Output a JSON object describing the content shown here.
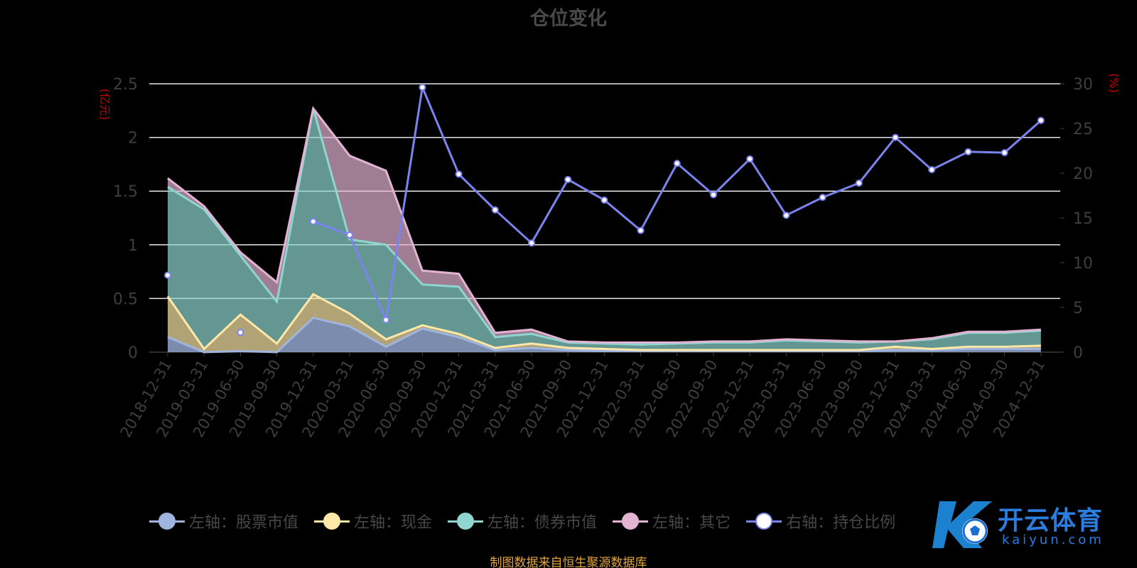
{
  "header": {
    "title": "仓位变化"
  },
  "footer": {
    "source": "制图数据来自恒生聚源数据库"
  },
  "watermark": {
    "brand": "开云体育",
    "domain": "kaiyun.com"
  },
  "legend": {
    "items": [
      {
        "label": "左轴：股票市值",
        "color": "#9fb4de"
      },
      {
        "label": "左轴：现金",
        "color": "#fde8a8"
      },
      {
        "label": "左轴：债券市值",
        "color": "#8fd5d0"
      },
      {
        "label": "左轴：其它",
        "color": "#e2b3d3"
      },
      {
        "label": "右轴：持仓比例",
        "color": "#7b84ee"
      }
    ]
  },
  "chart_data": {
    "type": "area",
    "title": "仓位变化",
    "y_left_label": "(亿元)",
    "y_right_label": "(%)",
    "y_left_range": [
      0,
      2.5
    ],
    "y_right_range": [
      0,
      30
    ],
    "y_left_ticks": [
      "0",
      "0.5",
      "1",
      "1.5",
      "2",
      "2.5"
    ],
    "y_right_ticks": [
      "0",
      "5",
      "10",
      "15",
      "20",
      "25",
      "30"
    ],
    "grid": true,
    "legend_position": "bottom",
    "categories": [
      "2018-12-31",
      "2019-03-31",
      "2019-06-30",
      "2019-09-30",
      "2019-12-31",
      "2020-03-31",
      "2020-06-30",
      "2020-09-30",
      "2020-12-31",
      "2021-03-31",
      "2021-06-30",
      "2021-09-30",
      "2021-12-31",
      "2022-03-31",
      "2022-06-30",
      "2022-09-30",
      "2022-12-31",
      "2023-03-31",
      "2023-06-30",
      "2023-09-30",
      "2023-12-31",
      "2024-03-31",
      "2024-06-30",
      "2024-09-30",
      "2024-12-31"
    ],
    "series": [
      {
        "name": "左轴：股票市值",
        "axis": "left",
        "stacked": true,
        "color": "#9fb4de",
        "values": [
          0.14,
          0.0,
          0.01,
          0.0,
          0.32,
          0.24,
          0.05,
          0.22,
          0.14,
          0.02,
          0.04,
          0.02,
          0.01,
          0.01,
          0.01,
          0.01,
          0.01,
          0.01,
          0.01,
          0.01,
          0.02,
          0.02,
          0.03,
          0.03,
          0.03
        ]
      },
      {
        "name": "左轴：现金",
        "axis": "left",
        "stacked": true,
        "color": "#fde8a8",
        "values": [
          0.38,
          0.03,
          0.34,
          0.08,
          0.22,
          0.12,
          0.07,
          0.03,
          0.03,
          0.02,
          0.04,
          0.02,
          0.02,
          0.01,
          0.01,
          0.01,
          0.01,
          0.01,
          0.01,
          0.01,
          0.03,
          0.01,
          0.02,
          0.02,
          0.03
        ]
      },
      {
        "name": "左轴：债券市值",
        "axis": "left",
        "stacked": true,
        "color": "#8fd5d0",
        "values": [
          1.02,
          1.3,
          0.55,
          0.39,
          1.73,
          0.69,
          0.88,
          0.38,
          0.44,
          0.1,
          0.09,
          0.05,
          0.05,
          0.05,
          0.06,
          0.07,
          0.07,
          0.09,
          0.08,
          0.07,
          0.05,
          0.09,
          0.13,
          0.13,
          0.14
        ]
      },
      {
        "name": "左轴：其它",
        "axis": "left",
        "stacked": true,
        "color": "#e2b3d3",
        "values": [
          0.08,
          0.03,
          0.03,
          0.18,
          0.0,
          0.78,
          0.69,
          0.13,
          0.12,
          0.04,
          0.04,
          0.01,
          0.01,
          0.02,
          0.01,
          0.01,
          0.01,
          0.01,
          0.01,
          0.01,
          0.0,
          0.01,
          0.01,
          0.01,
          0.01
        ]
      },
      {
        "name": "右轴：持仓比例",
        "axis": "right",
        "type": "line",
        "color": "#7b84ee",
        "values": [
          8.6,
          null,
          2.2,
          null,
          14.6,
          13.1,
          3.6,
          29.6,
          19.9,
          15.9,
          12.2,
          19.3,
          17.0,
          13.6,
          21.1,
          17.6,
          21.6,
          15.3,
          17.3,
          18.9,
          24.0,
          20.4,
          22.4,
          22.3,
          25.9
        ]
      }
    ]
  }
}
